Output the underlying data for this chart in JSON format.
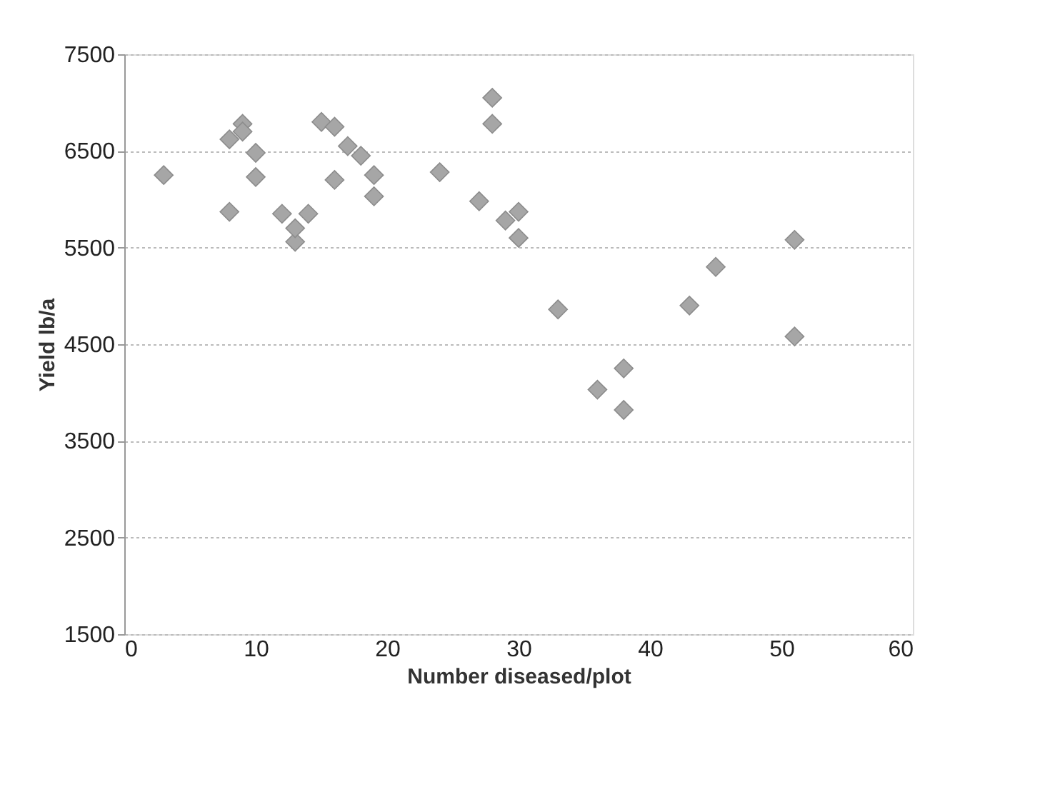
{
  "chart_data": {
    "type": "scatter",
    "xlabel": "Number diseased/plot",
    "ylabel": "Yield lb/a",
    "x": [
      3,
      8,
      8,
      9,
      9,
      10,
      10,
      12,
      13,
      13,
      14,
      15,
      16,
      16,
      17,
      18,
      19,
      19,
      24,
      27,
      28,
      28,
      29,
      30,
      30,
      33,
      36,
      38,
      38,
      43,
      45,
      51,
      51
    ],
    "series": [
      {
        "color": "#a6a6a6",
        "values": [
          6250,
          5870,
          6620,
          6780,
          6700,
          6480,
          6230,
          5850,
          5560,
          5700,
          5850,
          6800,
          6750,
          6200,
          6550,
          6450,
          6250,
          6030,
          6280,
          5980,
          7050,
          6780,
          5780,
          5870,
          5600,
          4860,
          4030,
          4250,
          3820,
          4900,
          5300,
          5580,
          4580
        ]
      }
    ],
    "xlim": [
      0,
      60
    ],
    "xticks": [
      0,
      10,
      20,
      30,
      40,
      50,
      60
    ],
    "ylim": [
      1500,
      7500
    ],
    "yticks": [
      1500,
      2500,
      3500,
      4500,
      5500,
      6500,
      7500
    ],
    "grid": "y",
    "marker": "diamond"
  }
}
